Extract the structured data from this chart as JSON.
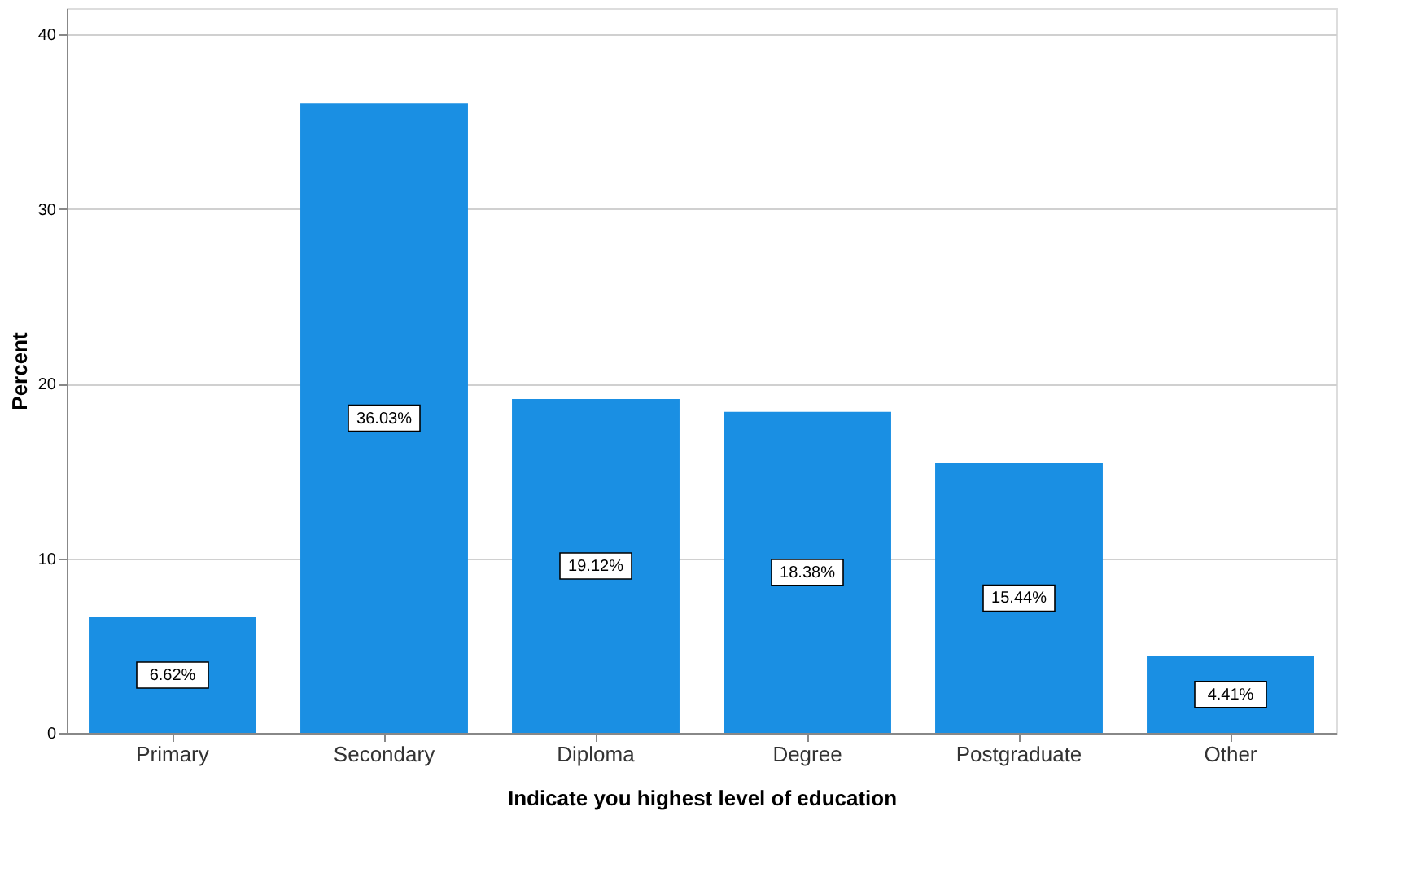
{
  "chart_data": {
    "type": "bar",
    "xlabel": "Indicate you highest level of education",
    "ylabel": "Percent",
    "categories": [
      "Primary",
      "Secondary",
      "Diploma",
      "Degree",
      "Postgraduate",
      "Other"
    ],
    "values": [
      6.62,
      36.03,
      19.12,
      18.38,
      15.44,
      4.41
    ],
    "value_labels": [
      "6.62%",
      "36.03%",
      "19.12%",
      "18.38%",
      "15.44%",
      "4.41%"
    ],
    "color": "#1a8fe3",
    "ylim": [
      0,
      41.5
    ],
    "yticks": [
      0,
      10,
      20,
      30,
      40
    ],
    "grid": "y"
  }
}
